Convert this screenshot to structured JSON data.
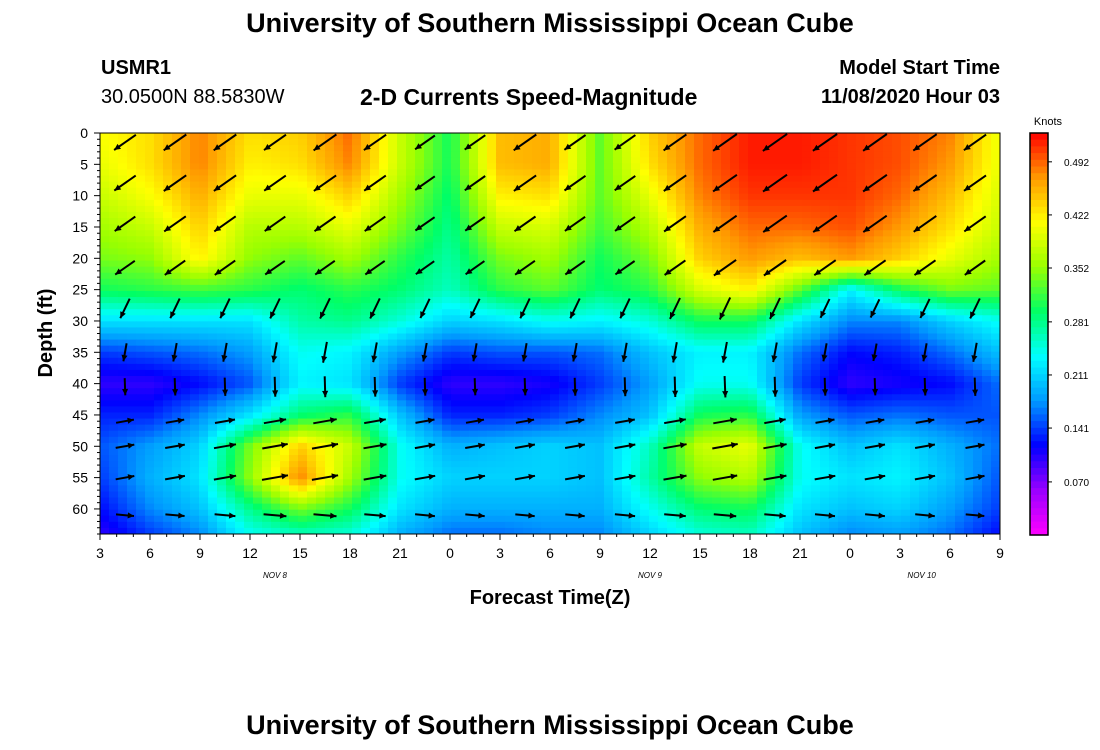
{
  "page": {
    "title_top": "University of Southern Mississippi Ocean Cube",
    "title_bottom": "University of Southern Mississippi Ocean Cube",
    "station_id": "USMR1",
    "location": "30.0500N 88.5830W",
    "plot_title": "2-D Currents Speed-Magnitude",
    "model_start_label": "Model Start Time",
    "model_start_value": "11/08/2020 Hour 03"
  },
  "chart_data": {
    "type": "heatmap",
    "title": "2-D Currents Speed-Magnitude",
    "xlabel": "Forecast Time(Z)",
    "ylabel": "Depth (ft)",
    "x_ticks": [
      "3",
      "6",
      "9",
      "12",
      "15",
      "18",
      "21",
      "0",
      "3",
      "6",
      "9",
      "12",
      "15",
      "18",
      "21",
      "0",
      "3",
      "6",
      "9"
    ],
    "x_range_hours": [
      0,
      54
    ],
    "date_labels": [
      {
        "text": "NOV 8",
        "hour_offset": 10.5
      },
      {
        "text": "NOV 9",
        "hour_offset": 33
      },
      {
        "text": "NOV 10",
        "hour_offset": 49.3
      }
    ],
    "y_ticks": [
      0,
      5,
      10,
      15,
      20,
      25,
      30,
      35,
      40,
      45,
      50,
      55,
      60
    ],
    "y_range": [
      0,
      64
    ],
    "y_inverted": true,
    "colorbar": {
      "units": "Knots",
      "labels": [
        "0.492",
        "0.422",
        "0.352",
        "0.281",
        "0.211",
        "0.141",
        "0.070"
      ],
      "range": [
        0.0,
        0.53
      ],
      "colors": [
        "#ff00ff",
        "#9900ff",
        "#0000ff",
        "#0099ff",
        "#00ffff",
        "#00ff66",
        "#99ff00",
        "#ffff00",
        "#ff9900",
        "#ff0000"
      ]
    },
    "grid_hours": [
      0,
      3,
      6,
      9,
      12,
      15,
      18,
      21,
      24,
      27,
      30,
      33,
      36,
      39,
      42,
      45,
      48,
      51,
      54
    ],
    "grid_depths": [
      0,
      5,
      10,
      15,
      20,
      25,
      30,
      35,
      40,
      45,
      50,
      55,
      60,
      64
    ],
    "speed_knots": [
      [
        0.41,
        0.43,
        0.48,
        0.43,
        0.44,
        0.49,
        0.38,
        0.3,
        0.45,
        0.46,
        0.33,
        0.44,
        0.49,
        0.52,
        0.52,
        0.51,
        0.5,
        0.48,
        0.4
      ],
      [
        0.4,
        0.43,
        0.48,
        0.42,
        0.43,
        0.48,
        0.38,
        0.3,
        0.45,
        0.46,
        0.33,
        0.43,
        0.49,
        0.52,
        0.52,
        0.51,
        0.5,
        0.47,
        0.4
      ],
      [
        0.38,
        0.41,
        0.46,
        0.4,
        0.4,
        0.44,
        0.36,
        0.29,
        0.42,
        0.43,
        0.33,
        0.4,
        0.48,
        0.51,
        0.51,
        0.51,
        0.49,
        0.45,
        0.39
      ],
      [
        0.36,
        0.38,
        0.44,
        0.37,
        0.37,
        0.4,
        0.34,
        0.28,
        0.38,
        0.39,
        0.32,
        0.37,
        0.46,
        0.49,
        0.49,
        0.5,
        0.47,
        0.43,
        0.38
      ],
      [
        0.34,
        0.35,
        0.42,
        0.35,
        0.33,
        0.36,
        0.31,
        0.27,
        0.34,
        0.36,
        0.3,
        0.34,
        0.44,
        0.47,
        0.45,
        0.47,
        0.44,
        0.4,
        0.36
      ],
      [
        0.3,
        0.31,
        0.32,
        0.31,
        0.29,
        0.31,
        0.29,
        0.26,
        0.31,
        0.33,
        0.29,
        0.31,
        0.39,
        0.42,
        0.33,
        0.23,
        0.3,
        0.34,
        0.33
      ],
      [
        0.22,
        0.22,
        0.22,
        0.22,
        0.27,
        0.28,
        0.25,
        0.21,
        0.22,
        0.24,
        0.23,
        0.25,
        0.3,
        0.3,
        0.22,
        0.17,
        0.17,
        0.21,
        0.24
      ],
      [
        0.14,
        0.15,
        0.16,
        0.18,
        0.24,
        0.23,
        0.18,
        0.14,
        0.15,
        0.15,
        0.16,
        0.2,
        0.23,
        0.23,
        0.16,
        0.12,
        0.13,
        0.16,
        0.2
      ],
      [
        0.1,
        0.1,
        0.12,
        0.15,
        0.23,
        0.22,
        0.14,
        0.1,
        0.1,
        0.11,
        0.14,
        0.18,
        0.24,
        0.24,
        0.14,
        0.1,
        0.11,
        0.12,
        0.16
      ],
      [
        0.13,
        0.13,
        0.17,
        0.22,
        0.29,
        0.31,
        0.2,
        0.13,
        0.13,
        0.14,
        0.17,
        0.2,
        0.3,
        0.31,
        0.18,
        0.15,
        0.16,
        0.15,
        0.15
      ],
      [
        0.15,
        0.18,
        0.21,
        0.34,
        0.44,
        0.38,
        0.24,
        0.19,
        0.2,
        0.21,
        0.2,
        0.26,
        0.38,
        0.4,
        0.24,
        0.2,
        0.22,
        0.19,
        0.16
      ],
      [
        0.14,
        0.19,
        0.22,
        0.35,
        0.48,
        0.36,
        0.24,
        0.21,
        0.21,
        0.21,
        0.2,
        0.27,
        0.35,
        0.37,
        0.24,
        0.22,
        0.23,
        0.2,
        0.15
      ],
      [
        0.12,
        0.17,
        0.2,
        0.28,
        0.34,
        0.3,
        0.22,
        0.19,
        0.19,
        0.19,
        0.19,
        0.24,
        0.29,
        0.3,
        0.22,
        0.2,
        0.21,
        0.18,
        0.14
      ],
      [
        0.1,
        0.14,
        0.17,
        0.24,
        0.26,
        0.25,
        0.19,
        0.16,
        0.16,
        0.17,
        0.17,
        0.21,
        0.25,
        0.26,
        0.2,
        0.17,
        0.18,
        0.16,
        0.12
      ]
    ],
    "vector_field_note": "current direction arrows; upper layer flows toward southwest, lower layer toward east",
    "vector_direction_deg": {
      "upper": 215,
      "mid_transition": 240,
      "lower": 10
    }
  }
}
